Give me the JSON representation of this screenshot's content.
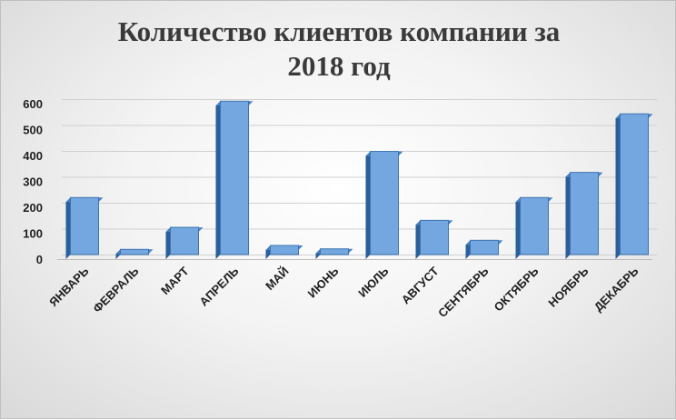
{
  "chart_data": {
    "type": "bar",
    "title_lines": [
      "Количество клиентов компании за",
      "2018 год"
    ],
    "categories": [
      "ЯНВАРЬ",
      "ФЕВРАЛЬ",
      "МАРТ",
      "АПРЕЛЬ",
      "МАЙ",
      "ИЮНЬ",
      "ИЮЛЬ",
      "АВГУСТ",
      "СЕНТЯБРЬ",
      "ОКТЯБРЬ",
      "НОЯБРЬ",
      "ДЕКАБРЬ"
    ],
    "values": [
      220,
      20,
      105,
      592,
      35,
      22,
      398,
      132,
      55,
      220,
      317,
      543
    ],
    "yticks": [
      0,
      100,
      200,
      300,
      400,
      500,
      600
    ],
    "ylim": [
      0,
      600
    ],
    "grid": true,
    "legend": "none",
    "colors": {
      "bar_front": "#74a7e0",
      "bar_side": "#2a5f9a",
      "bar_top": "#4a82c1",
      "bar_edge": "#3d73b0"
    }
  }
}
